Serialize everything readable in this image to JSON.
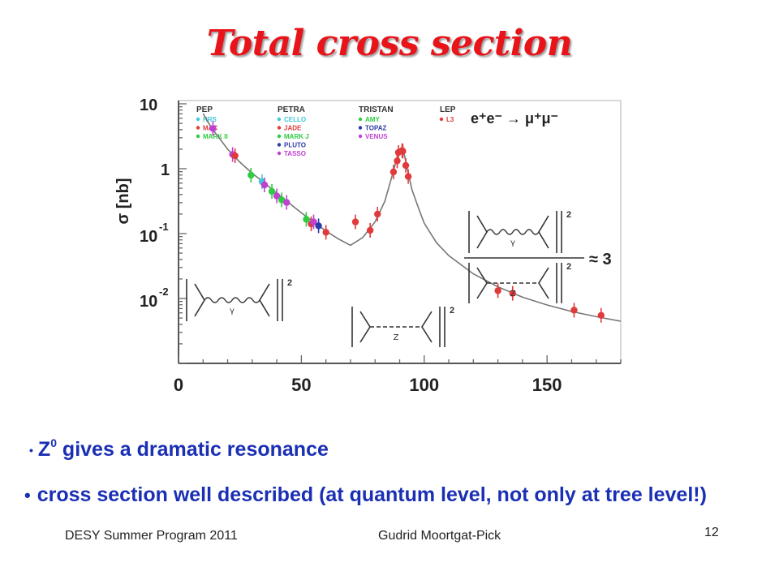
{
  "slide": {
    "title": "Total cross section",
    "bullets": [
      {
        "main": "Z",
        "sup": "0",
        "rest": " gives a dramatic resonance"
      },
      {
        "text": "cross section well described (at quantum level, not only at tree level!)"
      }
    ],
    "footer_left": "DESY Summer Program 2011",
    "footer_center": "Gudrid Moortgat-Pick",
    "page_number": "12"
  },
  "chart_data": {
    "type": "scatter",
    "title": "",
    "ylabel_main": "σ [nb]",
    "process": "e⁺e⁻ → μ⁺μ⁻",
    "xlim": [
      0,
      180
    ],
    "ylog": true,
    "ylim_exp": [
      -3,
      1.05
    ],
    "x_ticks": [
      "0",
      "50",
      "100",
      "150"
    ],
    "y_ticks": [
      {
        "exp": 1,
        "base": "10",
        "sup": ""
      },
      {
        "exp": 0,
        "base": "1",
        "sup": ""
      },
      {
        "exp": -1,
        "base": "10",
        "sup": "-1"
      },
      {
        "exp": -2,
        "base": "10",
        "sup": "-2"
      }
    ],
    "legend_groups": [
      {
        "header": "PEP",
        "entries": [
          {
            "name": "HRS",
            "color": "#3fc8d8"
          },
          {
            "name": "MAC",
            "color": "#e03a3a"
          },
          {
            "name": "MARK II",
            "color": "#2ecc40"
          }
        ]
      },
      {
        "header": "PETRA",
        "entries": [
          {
            "name": "CELLO",
            "color": "#3fc8d8"
          },
          {
            "name": "JADE",
            "color": "#e03a3a"
          },
          {
            "name": "MARK J",
            "color": "#2ecc40"
          },
          {
            "name": "PLUTO",
            "color": "#2a3aa8"
          },
          {
            "name": "TASSO",
            "color": "#c040d0"
          }
        ]
      },
      {
        "header": "TRISTAN",
        "entries": [
          {
            "name": "AMY",
            "color": "#2ecc40"
          },
          {
            "name": "TOPAZ",
            "color": "#2a3aa8"
          },
          {
            "name": "VENUS",
            "color": "#c040d0"
          }
        ]
      },
      {
        "header": "LEP",
        "entries": [
          {
            "name": "L3",
            "color": "#e03a3a"
          }
        ]
      }
    ],
    "theory_curve": [
      [
        10,
        0.85
      ],
      [
        12,
        0.72
      ],
      [
        14,
        0.6
      ],
      [
        17,
        0.45
      ],
      [
        20,
        0.3
      ],
      [
        25,
        0.1
      ],
      [
        30,
        -0.07
      ],
      [
        35,
        -0.22
      ],
      [
        40,
        -0.38
      ],
      [
        45,
        -0.53
      ],
      [
        50,
        -0.68
      ],
      [
        55,
        -0.82
      ],
      [
        60,
        -0.96
      ],
      [
        65,
        -1.08
      ],
      [
        70,
        -1.18
      ],
      [
        75,
        -1.06
      ],
      [
        80,
        -0.82
      ],
      [
        84,
        -0.5
      ],
      [
        87,
        -0.1
      ],
      [
        89,
        0.18
      ],
      [
        90,
        0.3
      ],
      [
        91.2,
        0.3
      ],
      [
        92,
        0.2
      ],
      [
        93,
        0.02
      ],
      [
        95,
        -0.32
      ],
      [
        98,
        -0.64
      ],
      [
        100,
        -0.84
      ],
      [
        105,
        -1.14
      ],
      [
        110,
        -1.34
      ],
      [
        120,
        -1.62
      ],
      [
        130,
        -1.82
      ],
      [
        140,
        -1.98
      ],
      [
        150,
        -2.1
      ],
      [
        160,
        -2.2
      ],
      [
        170,
        -2.28
      ],
      [
        180,
        -2.35
      ]
    ],
    "points": [
      {
        "x": 14,
        "y": 0.62,
        "color": "#c040d0"
      },
      {
        "x": 22,
        "y": 0.22,
        "color": "#c040d0"
      },
      {
        "x": 23,
        "y": 0.2,
        "color": "#e03a3a"
      },
      {
        "x": 29.5,
        "y": -0.1,
        "color": "#2ecc40"
      },
      {
        "x": 34,
        "y": -0.2,
        "color": "#3fc8d8"
      },
      {
        "x": 35,
        "y": -0.25,
        "color": "#c040d0"
      },
      {
        "x": 38,
        "y": -0.35,
        "color": "#2ecc40"
      },
      {
        "x": 40,
        "y": -0.42,
        "color": "#c040d0"
      },
      {
        "x": 42,
        "y": -0.48,
        "color": "#2ecc40"
      },
      {
        "x": 44,
        "y": -0.52,
        "color": "#c040d0"
      },
      {
        "x": 52,
        "y": -0.78,
        "color": "#2ecc40"
      },
      {
        "x": 54,
        "y": -0.85,
        "color": "#e03a3a"
      },
      {
        "x": 55,
        "y": -0.82,
        "color": "#c040d0"
      },
      {
        "x": 57,
        "y": -0.88,
        "color": "#2a3aa8"
      },
      {
        "x": 60,
        "y": -0.98,
        "color": "#e03a3a"
      },
      {
        "x": 72,
        "y": -0.82,
        "color": "#e03a3a"
      },
      {
        "x": 78,
        "y": -0.95,
        "color": "#e03a3a"
      },
      {
        "x": 81,
        "y": -0.7,
        "color": "#e03a3a"
      },
      {
        "x": 87.5,
        "y": -0.05,
        "color": "#e03a3a"
      },
      {
        "x": 89,
        "y": 0.12,
        "color": "#e03a3a"
      },
      {
        "x": 89.5,
        "y": 0.25,
        "color": "#e03a3a"
      },
      {
        "x": 91,
        "y": 0.28,
        "color": "#e03a3a"
      },
      {
        "x": 91.3,
        "y": 0.27,
        "color": "#e03a3a"
      },
      {
        "x": 92.5,
        "y": 0.05,
        "color": "#e03a3a"
      },
      {
        "x": 93.5,
        "y": -0.12,
        "color": "#e03a3a"
      },
      {
        "x": 130,
        "y": -1.88,
        "color": "#e03a3a"
      },
      {
        "x": 136,
        "y": -1.92,
        "color": "#e03a3a"
      },
      {
        "x": 161,
        "y": -2.18,
        "color": "#e03a3a"
      },
      {
        "x": 172,
        "y": -2.26,
        "color": "#e03a3a"
      }
    ],
    "annotations": {
      "photon": "γ",
      "z": "Z",
      "ratio": "≈ 3",
      "squared": "2"
    }
  }
}
